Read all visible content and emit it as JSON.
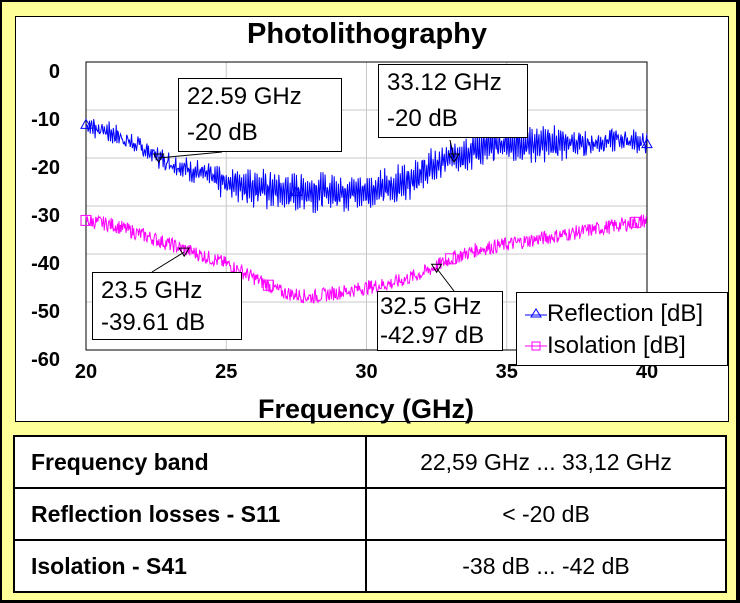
{
  "chart_data": {
    "type": "line",
    "title": "Photolithography",
    "xlabel": "Frequency (GHz)",
    "ylabel": "",
    "xlim": [
      20,
      40
    ],
    "ylim": [
      -60,
      0
    ],
    "xticks": [
      "20",
      "25",
      "30",
      "35",
      "40"
    ],
    "yticks": [
      "0",
      "-10",
      "-20",
      "-30",
      "-40",
      "-50",
      "-60"
    ],
    "grid": true,
    "legend_position": "bottom-right",
    "x": [
      20,
      21,
      22,
      23,
      24,
      25,
      26,
      27,
      28,
      29,
      30,
      31,
      32,
      33,
      34,
      35,
      36,
      37,
      38,
      39,
      40
    ],
    "series": [
      {
        "name": "Reflection [dB]",
        "color": "#0000ff",
        "marker": "triangle",
        "values": [
          -13,
          -15,
          -18,
          -21,
          -23,
          -25,
          -26,
          -27,
          -27,
          -27,
          -27,
          -26,
          -23,
          -20,
          -18,
          -17,
          -17,
          -17,
          -17,
          -16,
          -17
        ],
        "dip_depth": [
          0,
          0,
          0,
          0,
          2,
          10,
          16,
          18,
          18,
          18,
          18,
          16,
          12,
          10,
          12,
          14,
          16,
          10,
          4,
          2,
          0
        ]
      },
      {
        "name": "Isolation [dB]",
        "color": "#ff00ff",
        "marker": "square",
        "values": [
          -33,
          -34,
          -36,
          -38,
          -40,
          -42,
          -45,
          -48,
          -49,
          -48,
          -47,
          -46,
          -44,
          -41,
          -39,
          -38,
          -37,
          -36,
          -35,
          -34,
          -33
        ]
      }
    ],
    "annotations": [
      {
        "line1": "22.59 GHz",
        "line2": "-20 dB",
        "x": 22.59,
        "y": -20
      },
      {
        "line1": "33.12 GHz",
        "line2": "-20 dB",
        "x": 33.12,
        "y": -20
      },
      {
        "line1": "23.5 GHz",
        "line2": "-39.61 dB",
        "x": 23.5,
        "y": -39.61
      },
      {
        "line1": "32.5 GHz",
        "line2": "-42.97 dB",
        "x": 32.5,
        "y": -42.97
      }
    ]
  },
  "table": [
    {
      "label": "Frequency band",
      "value": "22,59 GHz ... 33,12 GHz"
    },
    {
      "label": "Reflection losses - S11",
      "value": "< -20 dB"
    },
    {
      "label": "Isolation - S41",
      "value": "-38 dB ... -42 dB"
    }
  ],
  "colors": {
    "background": "#ffff99",
    "reflection": "#0000ff",
    "isolation": "#ff00ff"
  }
}
